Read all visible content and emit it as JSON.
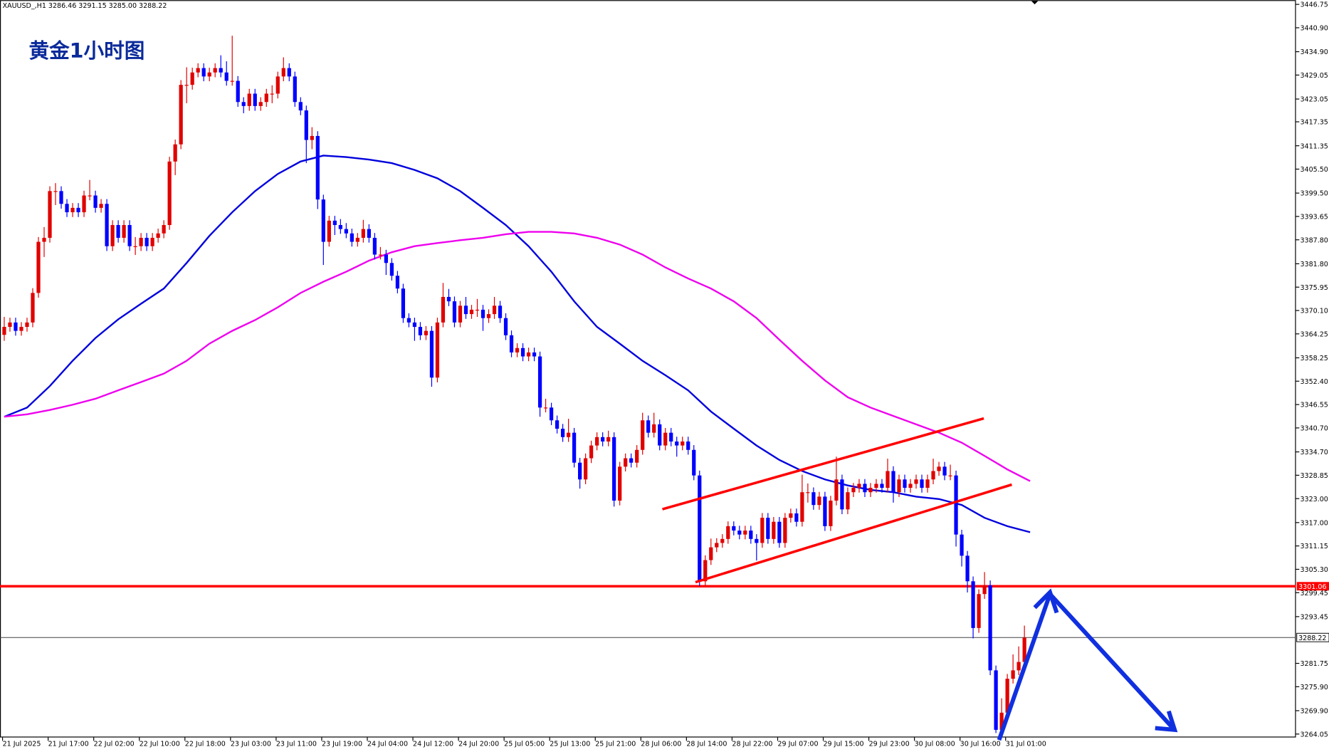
{
  "chart_data": {
    "type": "candlestick",
    "symbol_info": "XAUUSD_,H1  3286.46 3291.15 3285.00 3288.22",
    "title": "黄金1小时图",
    "up_color": "#e00000",
    "down_color": "#0000ff",
    "ylim": [
      3264.05,
      3446.75
    ],
    "yticks": [
      3446.75,
      {
        "value": 3440.9,
        "label": "3440.90"
      },
      {
        "value": 3434.9,
        "label": "3434.90"
      },
      3429.05,
      3423.05,
      3417.35,
      3411.35,
      {
        "value": 3405.5,
        "label": "3405.50"
      },
      {
        "value": 3399.5,
        "label": "3399.50"
      },
      3393.65,
      {
        "value": 3387.8,
        "label": "3387.80"
      },
      {
        "value": 3381.8,
        "label": "3381.80"
      },
      3375.95,
      {
        "value": 3370.1,
        "label": "3370.10"
      },
      3364.25,
      3358.25,
      {
        "value": 3352.4,
        "label": "3352.40"
      },
      3346.55,
      {
        "value": 3340.7,
        "label": "3340.70"
      },
      {
        "value": 3334.7,
        "label": "3334.70"
      },
      3328.85,
      {
        "value": 3323,
        "label": "3323.00"
      },
      {
        "value": 3317,
        "label": "3317.00"
      },
      3311.15,
      {
        "value": 3305.3,
        "label": "3305.30"
      },
      3299.45,
      3293.45,
      3281.75,
      {
        "value": 3275.9,
        "label": "3275.90"
      },
      {
        "value": 3269.9,
        "label": "3269.90"
      },
      3264.05
    ],
    "xtick_labels": [
      "21 Jul 2025",
      "21 Jul 17:00",
      "22 Jul 02:00",
      "22 Jul 10:00",
      "22 Jul 18:00",
      "23 Jul 03:00",
      "23 Jul 11:00",
      "23 Jul 19:00",
      "24 Jul 04:00",
      "24 Jul 12:00",
      "24 Jul 20:00",
      "25 Jul 05:00",
      "25 Jul 13:00",
      "25 Jul 21:00",
      "28 Jul 06:00",
      "28 Jul 14:00",
      "28 Jul 22:00",
      "29 Jul 07:00",
      "29 Jul 15:00",
      "29 Jul 23:00",
      "30 Jul 08:00",
      "30 Jul 16:00",
      "31 Jul 01:00"
    ],
    "level_line": {
      "value": 3301.06,
      "color": "#ff0000"
    },
    "current_price": {
      "value": 3288.22
    },
    "ohlc": [
      [
        3364.0,
        3368.5,
        3362.5,
        3366.0
      ],
      [
        3366.0,
        3368.3,
        3364.8,
        3367.1
      ],
      [
        3367.1,
        3368.3,
        3363.8,
        3365.0
      ],
      [
        3365.0,
        3367.2,
        3363.8,
        3366.0
      ],
      [
        3366.0,
        3368.3,
        3364.8,
        3367.1
      ],
      [
        3367.1,
        3375.7,
        3365.9,
        3374.5
      ],
      [
        3374.5,
        3388.5,
        3373.3,
        3387.3
      ],
      [
        3387.3,
        3391.0,
        3383.5,
        3388.3
      ],
      [
        3388.3,
        3401.2,
        3387.1,
        3400.0
      ],
      [
        3400.0,
        3402.0,
        3396.5,
        3400.0
      ],
      [
        3400.0,
        3401.2,
        3395.6,
        3396.8
      ],
      [
        3396.8,
        3398.0,
        3393.5,
        3394.7
      ],
      [
        3394.7,
        3397.0,
        3393.5,
        3395.8
      ],
      [
        3395.8,
        3397.0,
        3393.5,
        3394.7
      ],
      [
        3394.7,
        3400.1,
        3393.5,
        3398.9
      ],
      [
        3398.9,
        3402.8,
        3397.7,
        3398.9
      ],
      [
        3398.9,
        3400.1,
        3394.6,
        3395.8
      ],
      [
        3395.8,
        3398.0,
        3394.6,
        3396.8
      ],
      [
        3396.8,
        3398.0,
        3385.0,
        3386.2
      ],
      [
        3386.2,
        3392.7,
        3385.0,
        3391.5
      ],
      [
        3391.5,
        3392.7,
        3387.1,
        3388.3
      ],
      [
        3388.3,
        3392.7,
        3387.1,
        3391.5
      ],
      [
        3391.5,
        3392.7,
        3385.0,
        3386.2
      ],
      [
        3386.2,
        3388.5,
        3384.0,
        3386.2
      ],
      [
        3386.2,
        3389.5,
        3385.0,
        3388.3
      ],
      [
        3388.3,
        3389.5,
        3385.0,
        3386.2
      ],
      [
        3386.2,
        3389.5,
        3385.0,
        3388.3
      ],
      [
        3388.3,
        3390.6,
        3387.1,
        3389.4
      ],
      [
        3389.4,
        3392.7,
        3388.2,
        3391.5
      ],
      [
        3391.5,
        3408.6,
        3390.3,
        3407.4
      ],
      [
        3407.4,
        3412.9,
        3404.0,
        3411.7
      ],
      [
        3411.7,
        3427.8,
        3410.5,
        3426.6
      ],
      [
        3426.6,
        3431.0,
        3422.0,
        3426.6
      ],
      [
        3426.6,
        3430.9,
        3425.4,
        3429.7
      ],
      [
        3429.7,
        3432.0,
        3428.5,
        3430.8
      ],
      [
        3430.8,
        3432.0,
        3427.5,
        3428.7
      ],
      [
        3428.7,
        3430.9,
        3427.5,
        3429.7
      ],
      [
        3429.7,
        3432.0,
        3428.5,
        3430.8
      ],
      [
        3430.8,
        3434.0,
        3428.5,
        3429.7
      ],
      [
        3429.7,
        3432.5,
        3426.4,
        3427.6
      ],
      [
        3427.6,
        3438.9,
        3426.4,
        3427.6
      ],
      [
        3427.6,
        3428.8,
        3421.1,
        3422.3
      ],
      [
        3422.3,
        3423.5,
        3419.5,
        3421.3
      ],
      [
        3421.3,
        3425.6,
        3420.1,
        3424.4
      ],
      [
        3424.4,
        3425.6,
        3420.1,
        3421.3
      ],
      [
        3421.3,
        3423.5,
        3420.1,
        3422.3
      ],
      [
        3422.3,
        3425.6,
        3421.1,
        3424.4
      ],
      [
        3424.4,
        3426.5,
        3422.0,
        3424.4
      ],
      [
        3424.4,
        3429.9,
        3423.2,
        3428.7
      ],
      [
        3428.7,
        3433.5,
        3427.5,
        3430.8
      ],
      [
        3430.8,
        3432.0,
        3427.5,
        3428.7
      ],
      [
        3428.7,
        3429.9,
        3421.1,
        3422.3
      ],
      [
        3422.3,
        3423.5,
        3419.0,
        3420.2
      ],
      [
        3420.2,
        3421.4,
        3407.0,
        3412.8
      ],
      [
        3412.8,
        3416.0,
        3410.5,
        3413.8
      ],
      [
        3413.8,
        3415.0,
        3395.5,
        3397.9
      ],
      [
        3397.9,
        3399.1,
        3381.5,
        3387.3
      ],
      [
        3387.3,
        3393.8,
        3386.1,
        3392.6
      ],
      [
        3392.6,
        3393.8,
        3389.0,
        3391.5
      ],
      [
        3391.5,
        3393.0,
        3389.3,
        3390.5
      ],
      [
        3390.5,
        3392.0,
        3388.2,
        3389.4
      ],
      [
        3389.4,
        3390.6,
        3386.1,
        3387.3
      ],
      [
        3387.3,
        3389.5,
        3386.1,
        3388.3
      ],
      [
        3388.3,
        3392.8,
        3387.1,
        3390.5
      ],
      [
        3390.5,
        3391.7,
        3387.1,
        3388.3
      ],
      [
        3388.3,
        3389.5,
        3382.9,
        3384.1
      ],
      [
        3384.1,
        3386.0,
        3382.9,
        3384.1
      ],
      [
        3384.1,
        3385.3,
        3379.0,
        3382.0
      ],
      [
        3382.0,
        3383.2,
        3377.6,
        3378.8
      ],
      [
        3378.8,
        3380.0,
        3374.4,
        3375.6
      ],
      [
        3375.6,
        3376.8,
        3367.0,
        3368.2
      ],
      [
        3368.2,
        3369.4,
        3365.9,
        3367.1
      ],
      [
        3367.1,
        3368.3,
        3362.5,
        3366.0
      ],
      [
        3366.0,
        3367.2,
        3362.7,
        3363.9
      ],
      [
        3363.9,
        3366.2,
        3362.7,
        3365.0
      ],
      [
        3365.0,
        3366.2,
        3351.0,
        3353.3
      ],
      [
        3353.3,
        3368.3,
        3352.1,
        3367.1
      ],
      [
        3367.1,
        3377.0,
        3365.9,
        3373.5
      ],
      [
        3373.5,
        3375.5,
        3371.2,
        3372.4
      ],
      [
        3372.4,
        3373.6,
        3365.9,
        3367.1
      ],
      [
        3367.1,
        3372.5,
        3365.9,
        3371.3
      ],
      [
        3371.3,
        3373.5,
        3368.0,
        3369.2
      ],
      [
        3369.2,
        3371.5,
        3368.0,
        3370.3
      ],
      [
        3370.3,
        3373.0,
        3368.5,
        3370.3
      ],
      [
        3370.3,
        3371.5,
        3365.0,
        3368.2
      ],
      [
        3368.2,
        3370.4,
        3367.0,
        3369.2
      ],
      [
        3369.2,
        3373.5,
        3368.0,
        3371.3
      ],
      [
        3371.3,
        3372.5,
        3367.0,
        3368.2
      ],
      [
        3368.2,
        3369.4,
        3362.7,
        3363.9
      ],
      [
        3363.9,
        3365.1,
        3358.4,
        3359.6
      ],
      [
        3359.6,
        3361.9,
        3358.4,
        3360.7
      ],
      [
        3360.7,
        3361.9,
        3357.4,
        3358.6
      ],
      [
        3358.6,
        3360.8,
        3357.4,
        3359.6
      ],
      [
        3359.6,
        3360.8,
        3357.4,
        3358.6
      ],
      [
        3358.6,
        3359.8,
        3343.5,
        3345.8
      ],
      [
        3345.8,
        3348.0,
        3344.6,
        3345.8
      ],
      [
        3345.8,
        3347.0,
        3341.4,
        3342.6
      ],
      [
        3342.6,
        3343.8,
        3339.3,
        3340.5
      ],
      [
        3340.5,
        3341.7,
        3337.2,
        3338.4
      ],
      [
        3338.4,
        3343.0,
        3337.2,
        3339.5
      ],
      [
        3339.5,
        3340.7,
        3330.8,
        3332.0
      ],
      [
        3332.0,
        3333.2,
        3325.5,
        3327.8
      ],
      [
        3327.8,
        3334.3,
        3326.6,
        3333.1
      ],
      [
        3333.1,
        3337.5,
        3331.9,
        3336.3
      ],
      [
        3336.3,
        3339.6,
        3335.1,
        3338.4
      ],
      [
        3338.4,
        3339.6,
        3336.1,
        3337.3
      ],
      [
        3337.3,
        3340.0,
        3336.1,
        3338.4
      ],
      [
        3338.4,
        3339.6,
        3321.0,
        3322.5
      ],
      [
        3322.5,
        3332.2,
        3321.3,
        3331.0
      ],
      [
        3331.0,
        3334.3,
        3329.8,
        3333.1
      ],
      [
        3333.1,
        3334.3,
        3330.8,
        3332.0
      ],
      [
        3332.0,
        3336.4,
        3330.8,
        3335.2
      ],
      [
        3335.2,
        3344.5,
        3334.0,
        3342.6
      ],
      [
        3342.6,
        3343.8,
        3338.3,
        3339.5
      ],
      [
        3339.5,
        3344.5,
        3338.3,
        3341.6
      ],
      [
        3341.6,
        3342.8,
        3335.1,
        3336.3
      ],
      [
        3336.3,
        3340.7,
        3335.1,
        3339.5
      ],
      [
        3339.5,
        3340.7,
        3336.1,
        3337.3
      ],
      [
        3337.3,
        3338.5,
        3333.5,
        3336.3
      ],
      [
        3336.3,
        3338.5,
        3335.1,
        3337.3
      ],
      [
        3337.3,
        3338.5,
        3334.0,
        3335.2
      ],
      [
        3335.2,
        3336.4,
        3327.6,
        3328.8
      ],
      [
        3328.8,
        3330.0,
        3301.1,
        3302.3
      ],
      [
        3302.3,
        3308.8,
        3301.1,
        3307.6
      ],
      [
        3307.6,
        3313.0,
        3306.4,
        3310.8
      ],
      [
        3310.8,
        3313.1,
        3309.6,
        3311.9
      ],
      [
        3311.9,
        3314.1,
        3310.7,
        3312.9
      ],
      [
        3312.9,
        3317.3,
        3311.7,
        3316.1
      ],
      [
        3316.1,
        3317.3,
        3313.8,
        3315.0
      ],
      [
        3315.0,
        3316.2,
        3312.8,
        3314.0
      ],
      [
        3314.0,
        3316.2,
        3312.8,
        3315.0
      ],
      [
        3315.0,
        3316.2,
        3311.7,
        3312.9
      ],
      [
        3312.9,
        3314.1,
        3307.5,
        3311.9
      ],
      [
        3311.9,
        3319.4,
        3310.7,
        3318.2
      ],
      [
        3318.2,
        3319.4,
        3311.7,
        3312.9
      ],
      [
        3312.9,
        3318.4,
        3311.7,
        3317.2
      ],
      [
        3317.2,
        3318.4,
        3310.7,
        3311.9
      ],
      [
        3311.9,
        3319.4,
        3310.7,
        3318.2
      ],
      [
        3318.2,
        3320.5,
        3317.0,
        3319.3
      ],
      [
        3319.3,
        3320.5,
        3316.0,
        3317.2
      ],
      [
        3317.2,
        3329.0,
        3316.0,
        3324.6
      ],
      [
        3324.6,
        3326.8,
        3322.0,
        3324.6
      ],
      [
        3324.6,
        3325.8,
        3320.2,
        3321.4
      ],
      [
        3321.4,
        3324.7,
        3320.2,
        3323.5
      ],
      [
        3323.5,
        3324.7,
        3314.9,
        3316.1
      ],
      [
        3316.1,
        3323.7,
        3314.9,
        3322.5
      ],
      [
        3322.5,
        3333.5,
        3321.3,
        3327.8
      ],
      [
        3327.8,
        3329.0,
        3319.1,
        3320.3
      ],
      [
        3320.3,
        3325.8,
        3319.1,
        3324.6
      ],
      [
        3324.6,
        3326.9,
        3323.4,
        3325.7
      ],
      [
        3325.7,
        3327.9,
        3324.5,
        3326.7
      ],
      [
        3326.7,
        3327.9,
        3323.4,
        3324.6
      ],
      [
        3324.6,
        3326.9,
        3323.4,
        3325.7
      ],
      [
        3325.7,
        3327.9,
        3324.5,
        3326.7
      ],
      [
        3326.7,
        3327.9,
        3324.5,
        3325.7
      ],
      [
        3325.7,
        3333.0,
        3324.5,
        3329.9
      ],
      [
        3329.9,
        3331.1,
        3322.0,
        3324.6
      ],
      [
        3324.6,
        3329.0,
        3323.4,
        3327.8
      ],
      [
        3327.8,
        3329.0,
        3324.5,
        3325.7
      ],
      [
        3325.7,
        3327.9,
        3324.5,
        3326.7
      ],
      [
        3326.7,
        3329.0,
        3325.5,
        3327.8
      ],
      [
        3327.8,
        3329.0,
        3324.5,
        3325.7
      ],
      [
        3325.7,
        3329.0,
        3324.5,
        3327.8
      ],
      [
        3327.8,
        3333.0,
        3326.6,
        3329.9
      ],
      [
        3329.9,
        3332.2,
        3328.7,
        3331.0
      ],
      [
        3331.0,
        3332.2,
        3327.6,
        3328.8
      ],
      [
        3328.8,
        3331.5,
        3327.6,
        3328.8
      ],
      [
        3328.8,
        3330.0,
        3311.0,
        3314.0
      ],
      [
        3314.0,
        3315.2,
        3306.0,
        3308.7
      ],
      [
        3308.7,
        3309.9,
        3299.5,
        3302.3
      ],
      [
        3302.3,
        3303.5,
        3288.0,
        3290.6
      ],
      [
        3290.6,
        3300.3,
        3289.4,
        3299.1
      ],
      [
        3299.1,
        3304.6,
        3297.9,
        3301.3
      ],
      [
        3301.3,
        3302.5,
        3278.8,
        3280.0
      ],
      [
        3280.0,
        3281.2,
        3264.3,
        3265.1
      ],
      [
        3265.1,
        3273.0,
        3264.5,
        3269.4
      ],
      [
        3269.4,
        3279.1,
        3268.2,
        3277.9
      ],
      [
        3277.9,
        3284.0,
        3276.7,
        3280.0
      ],
      [
        3280.0,
        3286.0,
        3278.8,
        3282.1
      ],
      [
        3282.1,
        3291.2,
        3280.9,
        3288.2
      ]
    ],
    "moving_averages": [
      {
        "color": "#0000dd",
        "values": [
          3343.5,
          3345.8,
          3351.2,
          3357.5,
          3363.2,
          3367.9,
          3371.8,
          3375.6,
          3382.0,
          3388.8,
          3394.7,
          3400.0,
          3404.3,
          3407.4,
          3408.9,
          3408.5,
          3407.9,
          3407.0,
          3405.3,
          3403.2,
          3400.0,
          3395.8,
          3391.5,
          3386.2,
          3379.8,
          3372.4,
          3366.0,
          3361.8,
          3357.5,
          3353.9,
          3350.1,
          3344.8,
          3340.5,
          3336.3,
          3332.7,
          3329.9,
          3327.8,
          3326.3,
          3325.2,
          3324.6,
          3323.5,
          3322.9,
          3321.4,
          3318.2,
          3316.1,
          3314.6
        ]
      },
      {
        "color": "#ee00ee",
        "values": [
          3343.5,
          3344.1,
          3345.2,
          3346.5,
          3348.0,
          3350.1,
          3352.2,
          3354.3,
          3357.5,
          3361.8,
          3365.0,
          3367.7,
          3370.9,
          3374.5,
          3377.3,
          3379.8,
          3382.6,
          3384.7,
          3386.2,
          3387.0,
          3387.7,
          3388.3,
          3389.2,
          3389.8,
          3389.8,
          3389.4,
          3388.3,
          3386.6,
          3384.1,
          3380.9,
          3378.1,
          3375.6,
          3372.4,
          3368.2,
          3362.8,
          3357.5,
          3352.6,
          3348.4,
          3345.8,
          3343.7,
          3341.6,
          3339.5,
          3337.0,
          3333.7,
          3330.3,
          3327.4
        ]
      }
    ]
  }
}
